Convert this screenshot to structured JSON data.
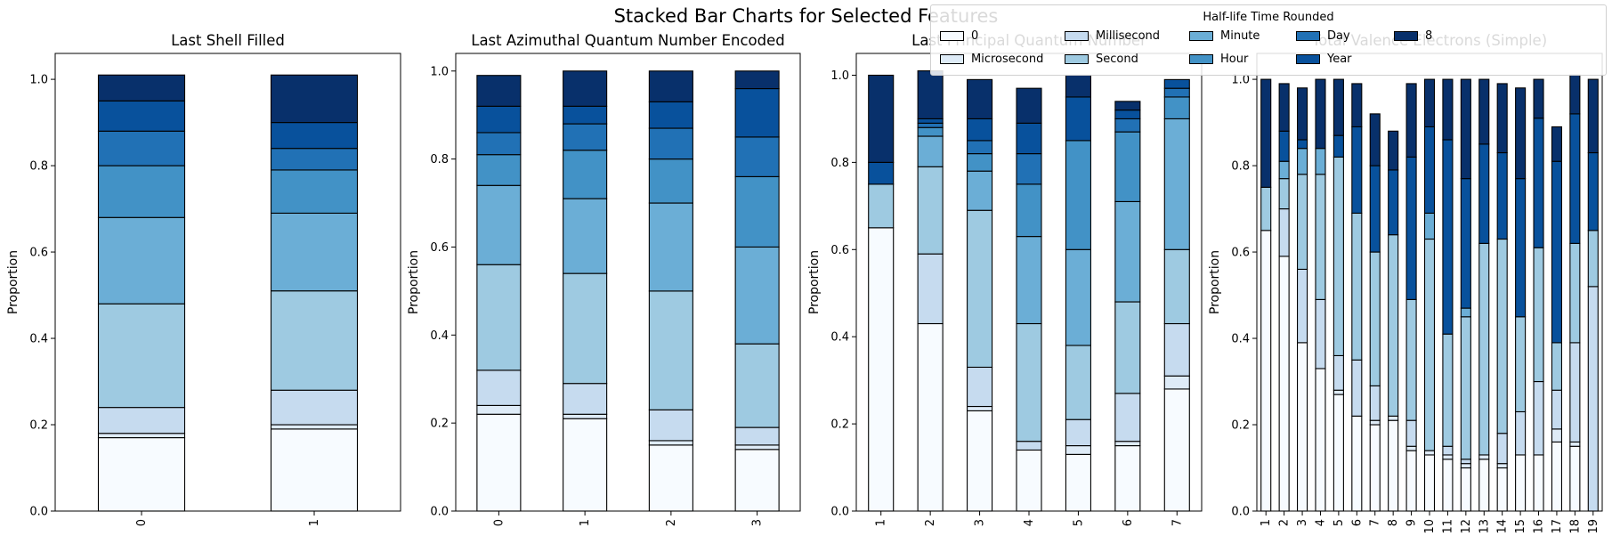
{
  "figure": {
    "title": "Stacked Bar Charts for Selected Features"
  },
  "legend": {
    "title": "Half-life Time Rounded",
    "placement": "top-right",
    "entries": [
      "0",
      "Microsecond",
      "Millisecond",
      "Second",
      "Minute",
      "Hour",
      "Day",
      "Year",
      "8"
    ]
  },
  "colors": [
    "#f7fbff",
    "#deebf7",
    "#c6dbef",
    "#9ecae1",
    "#6baed6",
    "#4292c6",
    "#2171b5",
    "#08519c",
    "#08306b"
  ],
  "chart_data": [
    {
      "type": "bar",
      "stacked": true,
      "title": "Last Shell Filled",
      "xlabel": "",
      "ylabel": "Proportion",
      "ylim": [
        0,
        1.06
      ],
      "yticks": [
        "0.0",
        "0.2",
        "0.4",
        "0.6",
        "0.8",
        "1.0"
      ],
      "categories": [
        "0",
        "1"
      ],
      "series": [
        {
          "name": "0",
          "values": [
            0.17,
            0.19
          ]
        },
        {
          "name": "Microsecond",
          "values": [
            0.01,
            0.01
          ]
        },
        {
          "name": "Millisecond",
          "values": [
            0.06,
            0.08
          ]
        },
        {
          "name": "Second",
          "values": [
            0.24,
            0.23
          ]
        },
        {
          "name": "Minute",
          "values": [
            0.2,
            0.18
          ]
        },
        {
          "name": "Hour",
          "values": [
            0.12,
            0.1
          ]
        },
        {
          "name": "Day",
          "values": [
            0.08,
            0.05
          ]
        },
        {
          "name": "Year",
          "values": [
            0.07,
            0.06
          ]
        },
        {
          "name": "8",
          "values": [
            0.06,
            0.11
          ]
        }
      ]
    },
    {
      "type": "bar",
      "stacked": true,
      "title": "Last Azimuthal Quantum Number Encoded",
      "xlabel": "",
      "ylabel": "Proportion",
      "ylim": [
        0,
        1.04
      ],
      "yticks": [
        "0.0",
        "0.2",
        "0.4",
        "0.6",
        "0.8",
        "1.0"
      ],
      "categories": [
        "0",
        "1",
        "2",
        "3"
      ],
      "series": [
        {
          "name": "0",
          "values": [
            0.22,
            0.21,
            0.15,
            0.14
          ]
        },
        {
          "name": "Microsecond",
          "values": [
            0.02,
            0.01,
            0.01,
            0.01
          ]
        },
        {
          "name": "Millisecond",
          "values": [
            0.08,
            0.07,
            0.07,
            0.04
          ]
        },
        {
          "name": "Second",
          "values": [
            0.24,
            0.25,
            0.27,
            0.19
          ]
        },
        {
          "name": "Minute",
          "values": [
            0.18,
            0.17,
            0.2,
            0.22
          ]
        },
        {
          "name": "Hour",
          "values": [
            0.07,
            0.11,
            0.1,
            0.16
          ]
        },
        {
          "name": "Day",
          "values": [
            0.05,
            0.06,
            0.07,
            0.09
          ]
        },
        {
          "name": "Year",
          "values": [
            0.06,
            0.04,
            0.06,
            0.11
          ]
        },
        {
          "name": "8",
          "values": [
            0.07,
            0.08,
            0.07,
            0.04
          ]
        }
      ]
    },
    {
      "type": "bar",
      "stacked": true,
      "title": "Last Principal Quantum Number",
      "xlabel": "",
      "ylabel": "Proportion",
      "ylim": [
        0,
        1.05
      ],
      "yticks": [
        "0.0",
        "0.2",
        "0.4",
        "0.6",
        "0.8",
        "1.0"
      ],
      "categories": [
        "1",
        "2",
        "3",
        "4",
        "5",
        "6",
        "7"
      ],
      "series": [
        {
          "name": "0",
          "values": [
            0.65,
            0.43,
            0.23,
            0.14,
            0.13,
            0.15,
            0.28
          ]
        },
        {
          "name": "Microsecond",
          "values": [
            0.0,
            0.0,
            0.01,
            0.0,
            0.02,
            0.01,
            0.03
          ]
        },
        {
          "name": "Millisecond",
          "values": [
            0.0,
            0.16,
            0.09,
            0.02,
            0.06,
            0.11,
            0.12
          ]
        },
        {
          "name": "Second",
          "values": [
            0.1,
            0.2,
            0.36,
            0.27,
            0.17,
            0.21,
            0.17
          ]
        },
        {
          "name": "Minute",
          "values": [
            0.0,
            0.07,
            0.09,
            0.2,
            0.22,
            0.23,
            0.3
          ]
        },
        {
          "name": "Hour",
          "values": [
            0.0,
            0.02,
            0.04,
            0.12,
            0.25,
            0.16,
            0.05
          ]
        },
        {
          "name": "Day",
          "values": [
            0.0,
            0.01,
            0.03,
            0.07,
            0.0,
            0.03,
            0.02
          ]
        },
        {
          "name": "Year",
          "values": [
            0.05,
            0.01,
            0.05,
            0.07,
            0.1,
            0.02,
            0.02
          ]
        },
        {
          "name": "8",
          "values": [
            0.2,
            0.11,
            0.09,
            0.08,
            0.05,
            0.02,
            0.0
          ]
        }
      ]
    },
    {
      "type": "bar",
      "stacked": true,
      "title": "Total Valence Electrons (Simple)",
      "xlabel": "",
      "ylabel": "Proportion",
      "ylim": [
        0,
        1.06
      ],
      "yticks": [
        "0.0",
        "0.2",
        "0.4",
        "0.6",
        "0.8",
        "1.0"
      ],
      "categories": [
        "1",
        "2",
        "3",
        "4",
        "5",
        "6",
        "7",
        "8",
        "9",
        "10",
        "11",
        "12",
        "13",
        "14",
        "15",
        "16",
        "17",
        "18",
        "19"
      ],
      "series": [
        {
          "name": "0",
          "values": [
            0.65,
            0.59,
            0.39,
            0.33,
            0.27,
            0.22,
            0.2,
            0.21,
            0.14,
            0.13,
            0.12,
            0.1,
            0.12,
            0.1,
            0.13,
            0.13,
            0.16,
            0.15,
            0.0
          ]
        },
        {
          "name": "Microsecond",
          "values": [
            0.0,
            0.0,
            0.0,
            0.0,
            0.01,
            0.0,
            0.01,
            0.01,
            0.01,
            0.01,
            0.01,
            0.01,
            0.01,
            0.01,
            0.0,
            0.0,
            0.03,
            0.01,
            0.0
          ]
        },
        {
          "name": "Millisecond",
          "values": [
            0.0,
            0.11,
            0.17,
            0.16,
            0.08,
            0.13,
            0.08,
            0.0,
            0.06,
            0.0,
            0.02,
            0.01,
            0.0,
            0.07,
            0.1,
            0.17,
            0.09,
            0.23,
            0.52
          ]
        },
        {
          "name": "Second",
          "values": [
            0.1,
            0.07,
            0.22,
            0.29,
            0.46,
            0.34,
            0.31,
            0.42,
            0.28,
            0.49,
            0.26,
            0.33,
            0.49,
            0.45,
            0.22,
            0.31,
            0.11,
            0.23,
            0.13
          ]
        },
        {
          "name": "Minute",
          "values": [
            0.0,
            0.04,
            0.06,
            0.06,
            0.0,
            0.0,
            0.0,
            0.0,
            0.0,
            0.06,
            0.0,
            0.02,
            0.0,
            0.0,
            0.0,
            0.0,
            0.0,
            0.0,
            0.0
          ]
        },
        {
          "name": "Hour",
          "values": [
            0.0,
            0.0,
            0.0,
            0.0,
            0.0,
            0.0,
            0.0,
            0.0,
            0.0,
            0.0,
            0.0,
            0.0,
            0.0,
            0.0,
            0.0,
            0.0,
            0.0,
            0.0,
            0.0
          ]
        },
        {
          "name": "Day",
          "values": [
            0.0,
            0.0,
            0.0,
            0.0,
            0.0,
            0.0,
            0.0,
            0.0,
            0.0,
            0.0,
            0.0,
            0.0,
            0.0,
            0.0,
            0.0,
            0.0,
            0.0,
            0.0,
            0.0
          ]
        },
        {
          "name": "Year",
          "values": [
            0.0,
            0.07,
            0.02,
            0.0,
            0.05,
            0.2,
            0.2,
            0.15,
            0.33,
            0.2,
            0.45,
            0.3,
            0.23,
            0.2,
            0.32,
            0.3,
            0.42,
            0.3,
            0.18
          ]
        },
        {
          "name": "8",
          "values": [
            0.25,
            0.11,
            0.12,
            0.16,
            0.13,
            0.1,
            0.12,
            0.09,
            0.17,
            0.11,
            0.14,
            0.23,
            0.15,
            0.16,
            0.21,
            0.09,
            0.08,
            0.09,
            0.17
          ]
        }
      ]
    }
  ]
}
